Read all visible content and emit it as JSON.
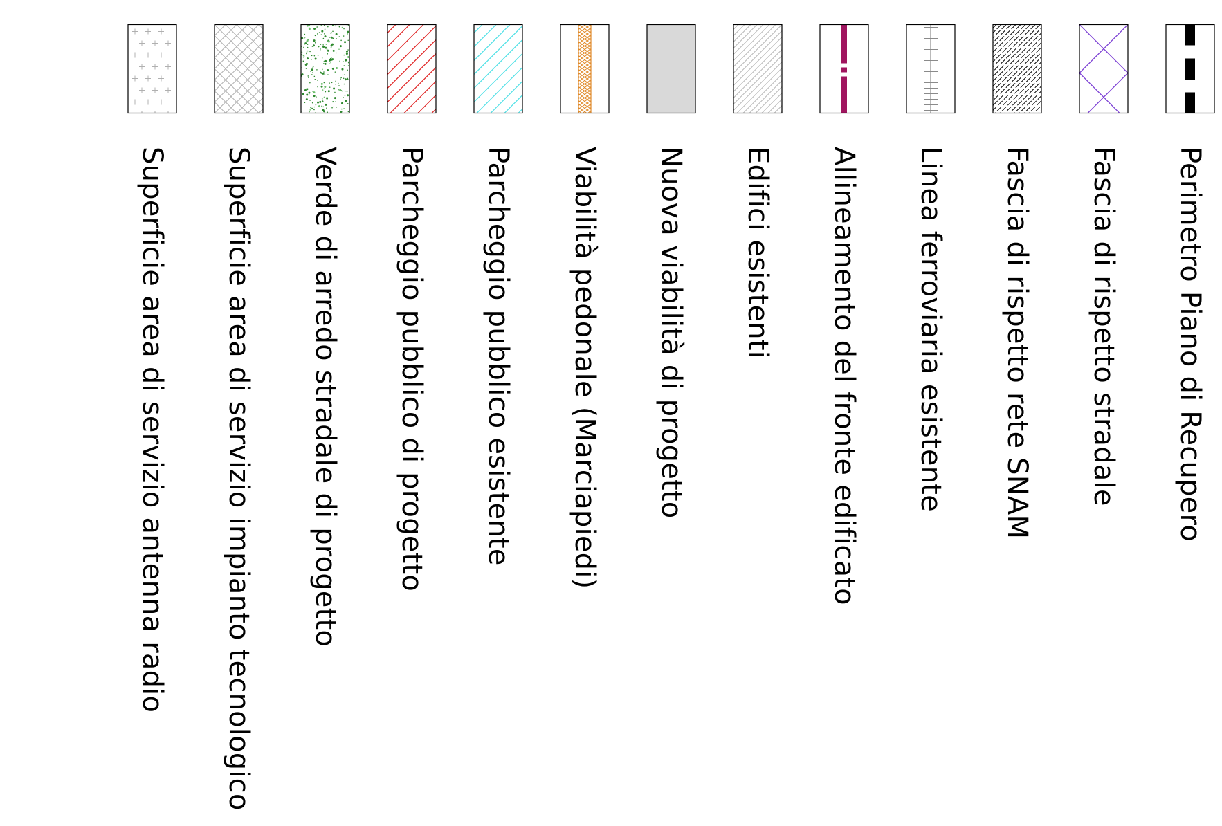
{
  "legend": {
    "items": [
      {
        "label": "Perimetro Piano di Recupero",
        "pattern": "dashed-perimeter",
        "color": "#000000"
      },
      {
        "label": "Fascia di rispetto stradale",
        "pattern": "diamond-lines",
        "color": "#7b3fd4"
      },
      {
        "label": "Fascia di rispetto rete SNAM",
        "pattern": "dense-dash-hatch",
        "color": "#000000"
      },
      {
        "label": "Linea ferroviaria esistente",
        "pattern": "railway-line",
        "color": "#8a8a8a"
      },
      {
        "label": "Allineamento del fronte edificato",
        "pattern": "magenta-dashdot",
        "color": "#a0155f"
      },
      {
        "label": "Edifici esistenti",
        "pattern": "grey-diagonal-hatch",
        "color": "#b8b8b8"
      },
      {
        "label": "Nuova viabilità di progetto",
        "pattern": "solid-fill",
        "color": "#d9d9d9"
      },
      {
        "label": "Viabilità pedonale (Marciapiedi)",
        "pattern": "orange-crosshatch-strip",
        "color": "#e08a2a"
      },
      {
        "label": "Parcheggio pubblico esistente",
        "pattern": "cyan-diagonal",
        "color": "#4de0e6"
      },
      {
        "label": "Parcheggio pubblico di progetto",
        "pattern": "red-diagonal",
        "color": "#e02020"
      },
      {
        "label": "Verde di arredo stradale di progetto",
        "pattern": "green-dots",
        "color": "#2f8a2f"
      },
      {
        "label": "Superficie area di servizio impianto tecnologico",
        "pattern": "grey-crosshatch",
        "color": "#b0b0b0"
      },
      {
        "label": "Superficie area di servizio antenna radio",
        "pattern": "plus-grid",
        "color": "#b0b0b0"
      }
    ]
  }
}
